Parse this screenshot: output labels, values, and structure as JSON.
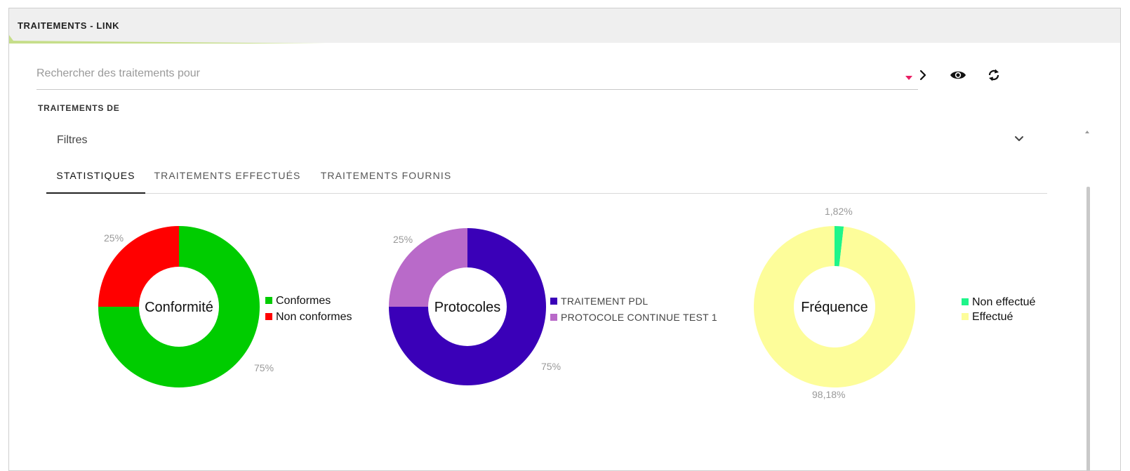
{
  "header": {
    "title": "TRAITEMENTS - LINK",
    "accent_color": "#c6de8a"
  },
  "search": {
    "placeholder": "Rechercher des traitements pour",
    "caret_color": "#e91e63"
  },
  "actions": {
    "next_icon": "chevron-right-icon",
    "view_icon": "eye-icon",
    "refresh_icon": "refresh-icon"
  },
  "section": {
    "label": "TRAITEMENTS DE"
  },
  "filters": {
    "label": "Filtres",
    "icon": "chevron-down-icon"
  },
  "tabs": [
    {
      "label": "STATISTIQUES",
      "active": true
    },
    {
      "label": "TRAITEMENTS EFFECTUÉS",
      "active": false
    },
    {
      "label": "TRAITEMENTS FOURNIS",
      "active": false
    }
  ],
  "chart_data": [
    {
      "type": "pie",
      "title": "Conformité",
      "series": [
        {
          "name": "Conformes",
          "value": 75,
          "label": "75%",
          "color": "#00cc00"
        },
        {
          "name": "Non conformes",
          "value": 25,
          "label": "25%",
          "color": "#ff0000"
        }
      ],
      "legend_placement": "right"
    },
    {
      "type": "pie",
      "title": "Protocoles",
      "series": [
        {
          "name": "TRAITEMENT PDL",
          "value": 75,
          "label": "75%",
          "color": "#3a00b8"
        },
        {
          "name": "PROTOCOLE CONTINUE TEST 1",
          "value": 25,
          "label": "25%",
          "color": "#b96ac9"
        }
      ],
      "legend_placement": "right"
    },
    {
      "type": "pie",
      "title": "Fréquence",
      "series": [
        {
          "name": "Non effectué",
          "value": 1.82,
          "label": "1,82%",
          "color": "#1ef58a"
        },
        {
          "name": "Effectué",
          "value": 98.18,
          "label": "98,18%",
          "color": "#fdfd9a"
        }
      ],
      "legend_placement": "right"
    }
  ]
}
